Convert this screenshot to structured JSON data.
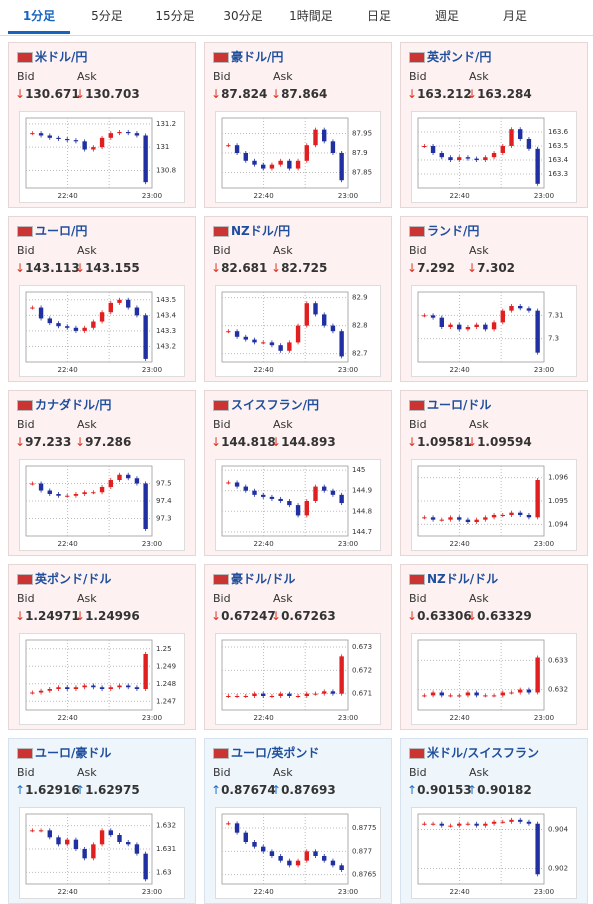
{
  "tabs": [
    "1分足",
    "5分足",
    "15分足",
    "30分足",
    "1時間足",
    "日足",
    "週足",
    "月足"
  ],
  "bid_label": "Bid",
  "ask_label": "Ask",
  "cards": [
    {
      "name": "米ドル/円",
      "arrow": "↓",
      "bid": "130.671",
      "ask": "130.703",
      "chart_data": {
        "type": "candlestick",
        "ylim": [
          130.65,
          131.25
        ],
        "yticks": [
          130.8,
          131,
          131.2
        ],
        "xticks": [
          "22:40",
          "23:00"
        ],
        "values": [
          131.12,
          131.1,
          131.08,
          131.07,
          131.06,
          131.05,
          130.98,
          131.0,
          131.08,
          131.12,
          131.13,
          131.12,
          131.1,
          130.7
        ]
      }
    },
    {
      "name": "豪ドル/円",
      "arrow": "↓",
      "bid": "87.824",
      "ask": "87.864",
      "chart_data": {
        "type": "candlestick",
        "ylim": [
          87.81,
          87.99
        ],
        "yticks": [
          87.85,
          87.9,
          87.95
        ],
        "xticks": [
          "22:40",
          "23:00"
        ],
        "values": [
          87.92,
          87.9,
          87.88,
          87.87,
          87.86,
          87.87,
          87.88,
          87.86,
          87.88,
          87.92,
          87.96,
          87.93,
          87.9,
          87.83
        ]
      }
    },
    {
      "name": "英ポンド/円",
      "arrow": "↓",
      "bid": "163.212",
      "ask": "163.284",
      "chart_data": {
        "type": "candlestick",
        "ylim": [
          163.2,
          163.7
        ],
        "yticks": [
          163.3,
          163.4,
          163.5,
          163.6
        ],
        "xticks": [
          "22:40",
          "23:00"
        ],
        "values": [
          163.5,
          163.45,
          163.42,
          163.4,
          163.42,
          163.41,
          163.4,
          163.42,
          163.45,
          163.5,
          163.62,
          163.55,
          163.48,
          163.23
        ]
      }
    },
    {
      "name": "ユーロ/円",
      "arrow": "↓",
      "bid": "143.113",
      "ask": "143.155",
      "chart_data": {
        "type": "candlestick",
        "ylim": [
          143.1,
          143.55
        ],
        "yticks": [
          143.2,
          143.3,
          143.4,
          143.5
        ],
        "xticks": [
          "22:40",
          "23:00"
        ],
        "values": [
          143.45,
          143.38,
          143.35,
          143.33,
          143.32,
          143.3,
          143.32,
          143.36,
          143.42,
          143.48,
          143.5,
          143.45,
          143.4,
          143.12
        ]
      }
    },
    {
      "name": "NZドル/円",
      "arrow": "↓",
      "bid": "82.681",
      "ask": "82.725",
      "chart_data": {
        "type": "candlestick",
        "ylim": [
          82.67,
          82.92
        ],
        "yticks": [
          82.7,
          82.8,
          82.9
        ],
        "xticks": [
          "22:40",
          "23:00"
        ],
        "values": [
          82.78,
          82.76,
          82.75,
          82.74,
          82.74,
          82.73,
          82.71,
          82.74,
          82.8,
          82.88,
          82.84,
          82.8,
          82.78,
          82.69
        ]
      }
    },
    {
      "name": "ランド/円",
      "arrow": "↓",
      "bid": "7.292",
      "ask": "7.302",
      "chart_data": {
        "type": "candlestick",
        "ylim": [
          7.29,
          7.32
        ],
        "yticks": [
          7.3,
          7.31
        ],
        "xticks": [
          "22:40",
          "23:00"
        ],
        "values": [
          7.31,
          7.309,
          7.305,
          7.306,
          7.304,
          7.305,
          7.306,
          7.304,
          7.307,
          7.312,
          7.314,
          7.313,
          7.312,
          7.294
        ]
      }
    },
    {
      "name": "カナダドル/円",
      "arrow": "↓",
      "bid": "97.233",
      "ask": "97.286",
      "chart_data": {
        "type": "candlestick",
        "ylim": [
          97.2,
          97.6
        ],
        "yticks": [
          97.3,
          97.4,
          97.5
        ],
        "xticks": [
          "22:40",
          "23:00"
        ],
        "values": [
          97.5,
          97.46,
          97.44,
          97.43,
          97.43,
          97.44,
          97.45,
          97.45,
          97.48,
          97.52,
          97.55,
          97.53,
          97.5,
          97.24
        ]
      }
    },
    {
      "name": "スイスフラン/円",
      "arrow": "↓",
      "bid": "144.818",
      "ask": "144.893",
      "chart_data": {
        "type": "candlestick",
        "ylim": [
          144.68,
          145.02
        ],
        "yticks": [
          144.7,
          144.8,
          144.9,
          145
        ],
        "xticks": [
          "22:40",
          "23:00"
        ],
        "values": [
          144.94,
          144.92,
          144.9,
          144.88,
          144.87,
          144.86,
          144.85,
          144.83,
          144.78,
          144.85,
          144.92,
          144.9,
          144.88,
          144.84
        ]
      }
    },
    {
      "name": "ユーロ/ドル",
      "arrow": "↓",
      "bid": "1.09581",
      "ask": "1.09594",
      "chart_data": {
        "type": "candlestick",
        "ylim": [
          1.0935,
          1.0965
        ],
        "yticks": [
          1.094,
          1.095,
          1.096
        ],
        "xticks": [
          "22:40",
          "23:00"
        ],
        "values": [
          1.0943,
          1.0942,
          1.0942,
          1.0943,
          1.0942,
          1.0941,
          1.0942,
          1.0943,
          1.0944,
          1.0944,
          1.0945,
          1.0944,
          1.0943,
          1.0959
        ]
      }
    },
    {
      "name": "英ポンド/ドル",
      "arrow": "↓",
      "bid": "1.24971",
      "ask": "1.24996",
      "chart_data": {
        "type": "candlestick",
        "ylim": [
          1.2465,
          1.2505
        ],
        "yticks": [
          1.247,
          1.248,
          1.249,
          1.25
        ],
        "xticks": [
          "22:40",
          "23:00"
        ],
        "values": [
          1.2475,
          1.2476,
          1.2477,
          1.2478,
          1.2477,
          1.2478,
          1.2479,
          1.2478,
          1.2477,
          1.2478,
          1.2479,
          1.2478,
          1.2477,
          1.2497
        ]
      }
    },
    {
      "name": "豪ドル/ドル",
      "arrow": "↓",
      "bid": "0.67247",
      "ask": "0.67263",
      "chart_data": {
        "type": "candlestick",
        "ylim": [
          0.6703,
          0.6733
        ],
        "yticks": [
          0.671,
          0.672,
          0.673
        ],
        "xticks": [
          "22:40",
          "23:00"
        ],
        "values": [
          0.6709,
          0.6709,
          0.6709,
          0.671,
          0.6709,
          0.6709,
          0.671,
          0.6709,
          0.6709,
          0.671,
          0.671,
          0.6711,
          0.671,
          0.6726
        ]
      }
    },
    {
      "name": "NZドル/ドル",
      "arrow": "↓",
      "bid": "0.63306",
      "ask": "0.63329",
      "chart_data": {
        "type": "candlestick",
        "ylim": [
          0.6313,
          0.6337
        ],
        "yticks": [
          0.632,
          0.633
        ],
        "xticks": [
          "22:40",
          "23:00"
        ],
        "values": [
          0.6318,
          0.6319,
          0.6318,
          0.6318,
          0.6318,
          0.6319,
          0.6318,
          0.6318,
          0.6318,
          0.6319,
          0.6319,
          0.632,
          0.6319,
          0.6331
        ]
      }
    },
    {
      "name": "ユーロ/豪ドル",
      "arrow": "↑",
      "bid": "1.62916",
      "ask": "1.62975",
      "chart_data": {
        "type": "candlestick",
        "ylim": [
          1.6295,
          1.6325
        ],
        "yticks": [
          1.63,
          1.631,
          1.632
        ],
        "xticks": [
          "22:40",
          "23:00"
        ],
        "values": [
          1.6318,
          1.6318,
          1.6315,
          1.6312,
          1.6314,
          1.631,
          1.6306,
          1.6312,
          1.6318,
          1.6316,
          1.6313,
          1.6312,
          1.6308,
          1.6297
        ]
      }
    },
    {
      "name": "ユーロ/英ポンド",
      "arrow": "↑",
      "bid": "0.87674",
      "ask": "0.87693",
      "chart_data": {
        "type": "candlestick",
        "ylim": [
          0.8763,
          0.8778
        ],
        "yticks": [
          0.8765,
          0.877,
          0.8775
        ],
        "xticks": [
          "22:40",
          "23:00"
        ],
        "values": [
          0.8776,
          0.8774,
          0.8772,
          0.8771,
          0.877,
          0.8769,
          0.8768,
          0.8767,
          0.8768,
          0.877,
          0.8769,
          0.8768,
          0.8767,
          0.8766
        ]
      }
    },
    {
      "name": "米ドル/スイスフラン",
      "arrow": "↑",
      "bid": "0.90153",
      "ask": "0.90182",
      "chart_data": {
        "type": "candlestick",
        "ylim": [
          0.9012,
          0.9048
        ],
        "yticks": [
          0.902,
          0.904
        ],
        "xticks": [
          "22:40",
          "23:00"
        ],
        "values": [
          0.9043,
          0.9043,
          0.9042,
          0.9042,
          0.9043,
          0.9043,
          0.9042,
          0.9043,
          0.9044,
          0.9044,
          0.9045,
          0.9044,
          0.9043,
          0.9017
        ]
      }
    }
  ]
}
